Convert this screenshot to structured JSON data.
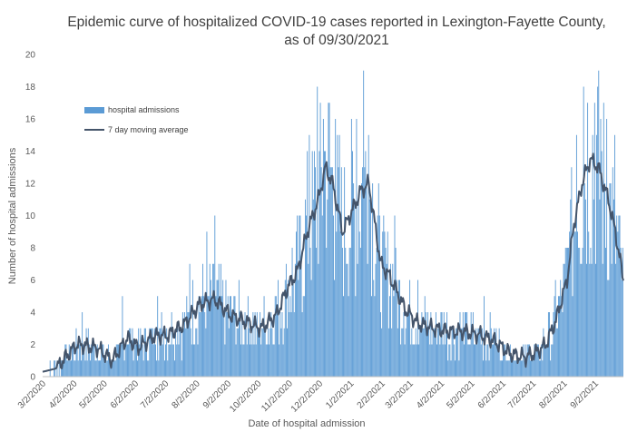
{
  "chart_data": {
    "type": "bar",
    "title": "Epidemic curve of hospitalized COVID-19 cases reported in Lexington-Fayette County,",
    "subtitle": "as of 09/30/2021",
    "xlabel": "Date of hospital admission",
    "ylabel": "Number of hospital admissions",
    "ylim": [
      0,
      20
    ],
    "y_ticks": [
      0,
      2,
      4,
      6,
      8,
      10,
      12,
      14,
      16,
      18,
      20
    ],
    "x_range": [
      "2020-03-02",
      "2021-09-30"
    ],
    "x_ticks": [
      "3/2/2020",
      "4/2/2020",
      "5/2/2020",
      "6/2/2020",
      "7/2/2020",
      "8/2/2020",
      "9/2/2020",
      "10/2/2020",
      "11/2/2020",
      "12/2/2020",
      "1/2/2021",
      "2/2/2021",
      "3/2/2021",
      "4/2/2021",
      "5/2/2021",
      "6/2/2021",
      "7/2/2021",
      "8/2/2021",
      "9/2/2021"
    ],
    "grid": false,
    "legend_position": "top-left",
    "colors": {
      "bars": "#5b9bd5",
      "moving_average": "#44546a"
    },
    "series": [
      {
        "name": "hospital admissions",
        "type": "bar",
        "anchors_x": [
          "2020-03-02",
          "2020-03-15",
          "2020-04-05",
          "2020-04-25",
          "2020-05-10",
          "2020-05-25",
          "2020-06-05",
          "2020-06-20",
          "2020-07-05",
          "2020-07-20",
          "2020-08-05",
          "2020-08-20",
          "2020-09-05",
          "2020-09-20",
          "2020-10-05",
          "2020-10-20",
          "2020-11-01",
          "2020-11-10",
          "2020-11-20",
          "2020-12-01",
          "2020-12-08",
          "2020-12-15",
          "2020-12-25",
          "2021-01-05",
          "2021-01-12",
          "2021-01-20",
          "2021-02-01",
          "2021-02-10",
          "2021-02-25",
          "2021-03-10",
          "2021-03-25",
          "2021-04-10",
          "2021-04-25",
          "2021-05-10",
          "2021-05-25",
          "2021-06-10",
          "2021-06-25",
          "2021-07-05",
          "2021-07-15",
          "2021-07-25",
          "2021-08-05",
          "2021-08-12",
          "2021-08-20",
          "2021-08-28",
          "2021-09-05",
          "2021-09-15",
          "2021-09-22",
          "2021-09-30"
        ],
        "anchors_y": [
          0.3,
          0.5,
          2,
          1.8,
          1.0,
          2.4,
          1.8,
          2.5,
          2.6,
          3.2,
          4.5,
          4.8,
          3.8,
          3.4,
          3.0,
          3.8,
          5.6,
          6.5,
          9.0,
          11,
          13,
          12,
          9.0,
          10.5,
          11.5,
          12.0,
          7.0,
          6.2,
          4.2,
          3.3,
          3.0,
          2.8,
          2.8,
          2.6,
          2.2,
          1.4,
          1.2,
          1.5,
          2.0,
          3.5,
          6.0,
          9.5,
          12.0,
          13.5,
          13.0,
          11.0,
          9.0,
          6.0
        ],
        "peaks": [
          {
            "date": "2020-04-10",
            "value": 4
          },
          {
            "date": "2020-05-20",
            "value": 5
          },
          {
            "date": "2020-06-24",
            "value": 5
          },
          {
            "date": "2020-07-26",
            "value": 7
          },
          {
            "date": "2020-08-12",
            "value": 9
          },
          {
            "date": "2020-08-20",
            "value": 10
          },
          {
            "date": "2020-10-20",
            "value": 5
          },
          {
            "date": "2020-11-22",
            "value": 15
          },
          {
            "date": "2020-11-30",
            "value": 18
          },
          {
            "date": "2020-12-06",
            "value": 16
          },
          {
            "date": "2020-12-12",
            "value": 17
          },
          {
            "date": "2020-12-18",
            "value": 16
          },
          {
            "date": "2021-01-08",
            "value": 16
          },
          {
            "date": "2021-01-15",
            "value": 19
          },
          {
            "date": "2021-01-20",
            "value": 15
          },
          {
            "date": "2021-02-05",
            "value": 9
          },
          {
            "date": "2021-02-15",
            "value": 10
          },
          {
            "date": "2021-03-10",
            "value": 6
          },
          {
            "date": "2021-05-15",
            "value": 5
          },
          {
            "date": "2021-07-25",
            "value": 6
          },
          {
            "date": "2021-08-08",
            "value": 9
          },
          {
            "date": "2021-08-15",
            "value": 15
          },
          {
            "date": "2021-08-22",
            "value": 18
          },
          {
            "date": "2021-08-26",
            "value": 17
          },
          {
            "date": "2021-09-02",
            "value": 17
          },
          {
            "date": "2021-09-08",
            "value": 16
          },
          {
            "date": "2021-09-14",
            "value": 16
          },
          {
            "date": "2021-09-22",
            "value": 15
          }
        ]
      },
      {
        "name": "7 day moving average",
        "type": "line",
        "x": [
          "2020-03-02",
          "2020-03-15",
          "2020-04-05",
          "2020-04-25",
          "2020-05-10",
          "2020-05-25",
          "2020-06-05",
          "2020-06-20",
          "2020-07-05",
          "2020-07-20",
          "2020-08-05",
          "2020-08-20",
          "2020-09-05",
          "2020-09-20",
          "2020-10-05",
          "2020-10-20",
          "2020-11-01",
          "2020-11-10",
          "2020-11-20",
          "2020-12-01",
          "2020-12-08",
          "2020-12-15",
          "2020-12-25",
          "2021-01-05",
          "2021-01-12",
          "2021-01-20",
          "2021-02-01",
          "2021-02-10",
          "2021-02-25",
          "2021-03-10",
          "2021-03-25",
          "2021-04-10",
          "2021-04-25",
          "2021-05-10",
          "2021-05-25",
          "2021-06-10",
          "2021-06-25",
          "2021-07-05",
          "2021-07-15",
          "2021-07-25",
          "2021-08-05",
          "2021-08-12",
          "2021-08-20",
          "2021-08-28",
          "2021-09-05",
          "2021-09-15",
          "2021-09-22",
          "2021-09-30"
        ],
        "y": [
          0.3,
          0.5,
          2,
          1.8,
          1.0,
          2.4,
          1.8,
          2.5,
          2.6,
          3.2,
          4.5,
          4.8,
          3.8,
          3.4,
          3.0,
          3.8,
          5.6,
          6.5,
          9.0,
          11,
          13,
          12,
          9.0,
          10.5,
          11.5,
          12.0,
          7.0,
          6.2,
          4.2,
          3.3,
          3.0,
          2.8,
          2.8,
          2.6,
          2.2,
          1.4,
          1.2,
          1.5,
          2.0,
          3.5,
          6.0,
          9.5,
          12.0,
          13.5,
          13.0,
          11.0,
          9.0,
          6.0
        ]
      }
    ]
  }
}
